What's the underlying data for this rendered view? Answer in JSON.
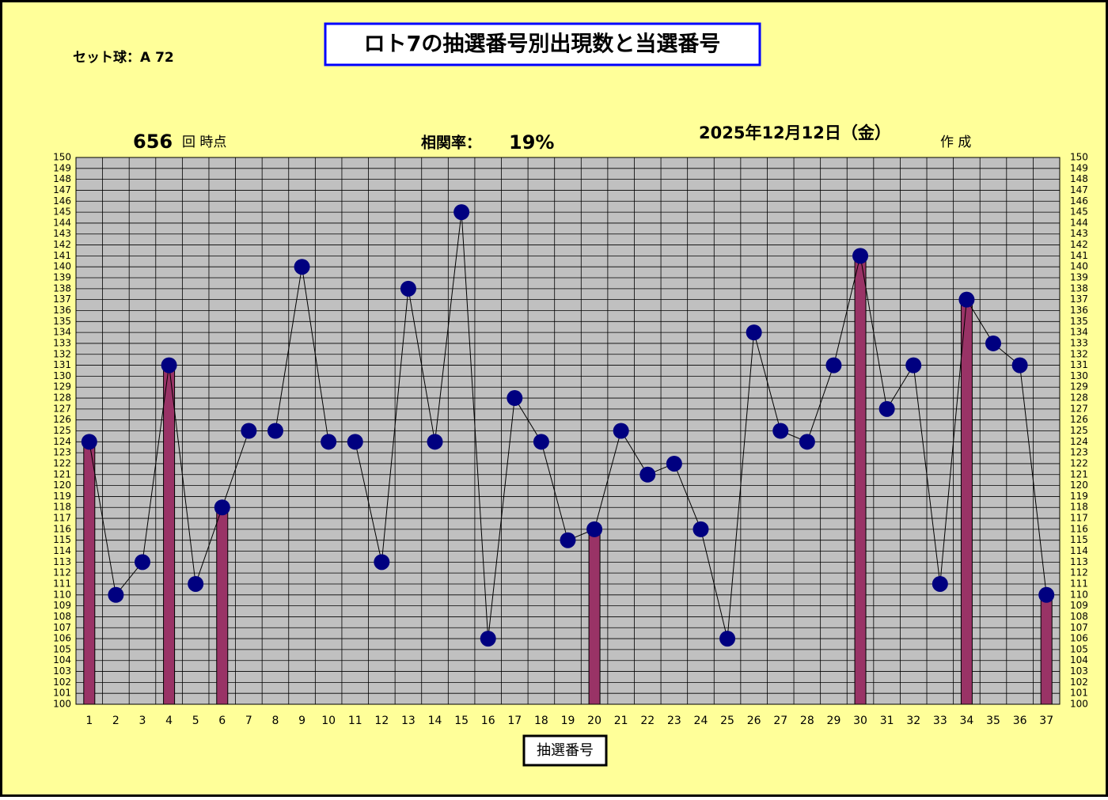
{
  "chart_data": {
    "type": "bar-line",
    "title": "ロト7の抽選番号別出現数と当選番号",
    "set_ball": "セット球：A 72",
    "draw_count": "656",
    "draw_count_suffix": "回 時点",
    "correlation_label": "相関率：",
    "correlation": "19%",
    "date": "2025年12月12日（金）",
    "created": "作 成",
    "x_label": "抽選番号",
    "categories": [
      "1",
      "2",
      "3",
      "4",
      "5",
      "6",
      "7",
      "8",
      "9",
      "10",
      "11",
      "12",
      "13",
      "14",
      "15",
      "16",
      "17",
      "18",
      "19",
      "20",
      "21",
      "22",
      "23",
      "24",
      "25",
      "26",
      "27",
      "28",
      "29",
      "30",
      "31",
      "32",
      "33",
      "34",
      "35",
      "36",
      "37"
    ],
    "values": [
      124,
      110,
      113,
      131,
      111,
      118,
      125,
      125,
      140,
      124,
      124,
      113,
      138,
      124,
      145,
      106,
      128,
      124,
      115,
      116,
      125,
      121,
      122,
      116,
      106,
      134,
      125,
      124,
      131,
      141,
      127,
      131,
      111,
      137,
      133,
      131,
      110
    ],
    "highlight": [
      "1",
      "4",
      "6",
      "20",
      "30",
      "34",
      "37"
    ],
    "bar_color": "#993366",
    "marker_color": "#000080",
    "ylim": [
      100,
      150
    ],
    "yticks": [
      100,
      101,
      102,
      103,
      104,
      105,
      106,
      107,
      108,
      109,
      110,
      111,
      112,
      113,
      114,
      115,
      116,
      117,
      118,
      119,
      120,
      121,
      122,
      123,
      124,
      125,
      126,
      127,
      128,
      129,
      130,
      131,
      132,
      133,
      134,
      135,
      136,
      137,
      138,
      139,
      140,
      141,
      142,
      143,
      144,
      145,
      146,
      147,
      148,
      149,
      150
    ],
    "grid": true
  }
}
